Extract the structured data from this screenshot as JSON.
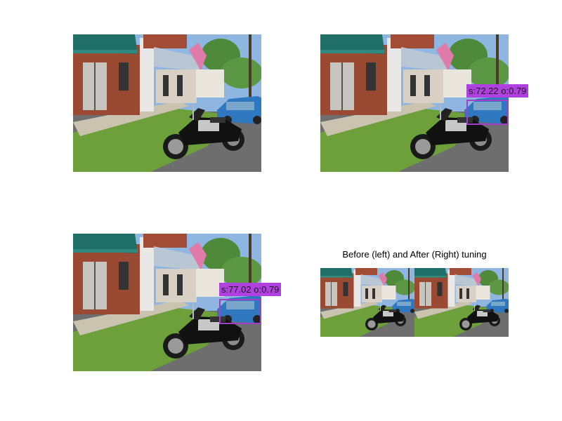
{
  "panels": [
    {
      "id": "top-left"
    },
    {
      "id": "top-right",
      "detection": {
        "label": "s:72.22 o:0.79",
        "color": "#b040e0"
      }
    },
    {
      "id": "bottom-left",
      "detection": {
        "label": "s:77.02 o:0.79",
        "color": "#b040e0"
      }
    },
    {
      "id": "bottom-right",
      "title": "Before (left) and After (Right) tuning"
    }
  ]
}
